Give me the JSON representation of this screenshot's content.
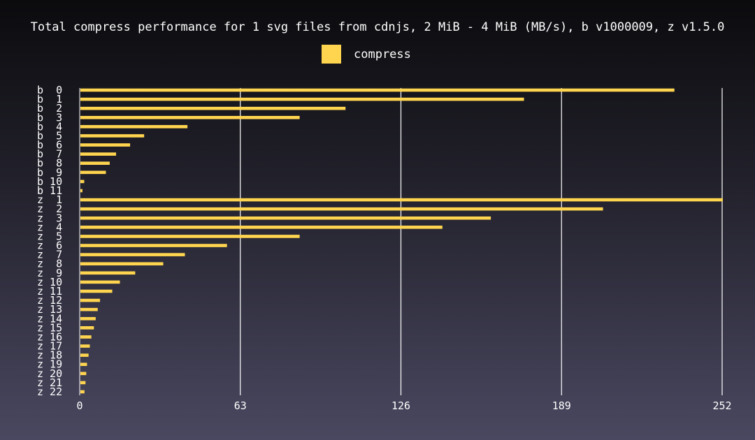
{
  "chart_data": {
    "type": "bar",
    "orientation": "horizontal",
    "title": "Total compress performance for 1 svg files from cdnjs, 2 MiB - 4 MiB (MB/s), b v1000009, z v1.5.0",
    "xlabel": "",
    "ylabel": "",
    "xlim": [
      0,
      252
    ],
    "x_ticks": [
      "0",
      "63",
      "126",
      "189",
      "252"
    ],
    "grid": "vertical",
    "legend_position": "top-center",
    "bar_color": "#ffd54f",
    "categories": [
      "b  0",
      "b  1",
      "b  2",
      "b  3",
      "b  4",
      "b  5",
      "b  6",
      "b  7",
      "b  8",
      "b  9",
      "b 10",
      "b 11",
      "z  1",
      "z  2",
      "z  3",
      "z  4",
      "z  5",
      "z  6",
      "z  7",
      "z  8",
      "z  9",
      "z 10",
      "z 11",
      "z 12",
      "z 13",
      "z 14",
      "z 15",
      "z 16",
      "z 17",
      "z 18",
      "z 19",
      "z 20",
      "z 21",
      "z 22"
    ],
    "series": [
      {
        "name": "compress",
        "values": [
          233,
          174,
          104,
          86,
          42,
          25,
          19.5,
          14,
          11.5,
          10,
          1.5,
          0.8,
          252,
          205,
          161,
          142,
          86,
          57.5,
          41,
          32.5,
          21.5,
          15.5,
          12.5,
          7.7,
          6.8,
          6.0,
          5.3,
          4.3,
          3.7,
          3.2,
          2.6,
          2.3,
          2.0,
          1.6
        ]
      }
    ]
  }
}
